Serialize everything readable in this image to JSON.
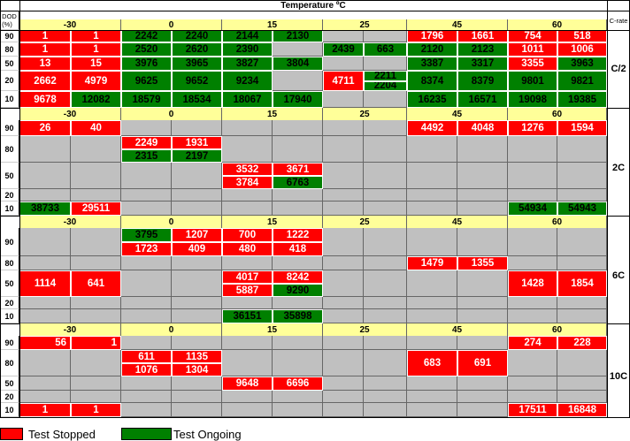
{
  "header": {
    "title": "Temperature ºC",
    "dod_label": "DOD\n(%)",
    "crate_label": "C-rate"
  },
  "temperatures": [
    "-30",
    "0",
    "15",
    "25",
    "45",
    "60"
  ],
  "colors": {
    "stopped": "#ff0000",
    "ongoing": "#008000",
    "empty": "#c0c0c0",
    "header": "#ffff99"
  },
  "blocks": [
    {
      "crate": "C/2",
      "dod": [
        "90",
        "80",
        "50",
        "20",
        "10"
      ],
      "cells": [
        [
          "red",
          "1",
          0,
          0,
          1
        ],
        [
          "red",
          "1",
          1,
          0,
          1
        ],
        [
          "green",
          "2242",
          2,
          0,
          1
        ],
        [
          "green",
          "2240",
          3,
          0,
          1
        ],
        [
          "green",
          "2144",
          4,
          0,
          1
        ],
        [
          "green",
          "2130",
          5,
          0,
          1
        ],
        [
          "red",
          "1796",
          8,
          0,
          1
        ],
        [
          "red",
          "1661",
          9,
          0,
          1
        ],
        [
          "red",
          "754",
          10,
          0,
          1
        ],
        [
          "red",
          "518",
          11,
          0,
          1
        ],
        [
          "red",
          "1",
          0,
          1,
          1
        ],
        [
          "red",
          "1",
          1,
          1,
          1
        ],
        [
          "green",
          "2520",
          2,
          1,
          1
        ],
        [
          "green",
          "2620",
          3,
          1,
          1
        ],
        [
          "green",
          "2390",
          4,
          1,
          1
        ],
        [
          "green",
          "2439",
          6,
          1,
          1
        ],
        [
          "green",
          "663",
          7,
          1,
          1
        ],
        [
          "green",
          "2120",
          8,
          1,
          1
        ],
        [
          "green",
          "2123",
          9,
          1,
          1
        ],
        [
          "red",
          "1011",
          10,
          1,
          1
        ],
        [
          "red",
          "1006",
          11,
          1,
          1
        ],
        [
          "red",
          "13",
          0,
          2,
          1
        ],
        [
          "red",
          "15",
          1,
          2,
          1
        ],
        [
          "green",
          "3976",
          2,
          2,
          1
        ],
        [
          "green",
          "3965",
          3,
          2,
          1
        ],
        [
          "green",
          "3827",
          4,
          2,
          1
        ],
        [
          "green",
          "3804",
          5,
          2,
          1
        ],
        [
          "green",
          "3387",
          8,
          2,
          1
        ],
        [
          "green",
          "3317",
          9,
          2,
          1
        ],
        [
          "red",
          "3355",
          10,
          2,
          1
        ],
        [
          "green",
          "3963",
          11,
          2,
          1
        ],
        [
          "red",
          "2662",
          0,
          3,
          1
        ],
        [
          "red",
          "4979",
          1,
          3,
          1
        ],
        [
          "green",
          "9625",
          2,
          3,
          1
        ],
        [
          "green",
          "9652",
          3,
          3,
          1
        ],
        [
          "green",
          "9234",
          4,
          3,
          1
        ],
        [
          "red",
          "4711",
          6,
          3,
          1
        ],
        [
          "green",
          "2211",
          7,
          3,
          0.5
        ],
        [
          "green",
          "2204",
          7,
          3.5,
          0.5
        ],
        [
          "green",
          "8374",
          8,
          3,
          1
        ],
        [
          "green",
          "8379",
          9,
          3,
          1
        ],
        [
          "green",
          "9801",
          10,
          3,
          1
        ],
        [
          "green",
          "9821",
          11,
          3,
          1
        ],
        [
          "red",
          "9678",
          0,
          4,
          1
        ],
        [
          "green",
          "12082",
          1,
          4,
          1
        ],
        [
          "green",
          "18579",
          2,
          4,
          1
        ],
        [
          "green",
          "18534",
          3,
          4,
          1
        ],
        [
          "green",
          "18067",
          4,
          4,
          1
        ],
        [
          "green",
          "17940",
          5,
          4,
          1
        ],
        [
          "green",
          "16235",
          8,
          4,
          1
        ],
        [
          "green",
          "16571",
          9,
          4,
          1
        ],
        [
          "green",
          "19098",
          10,
          4,
          1
        ],
        [
          "green",
          "19385",
          11,
          4,
          1
        ]
      ]
    },
    {
      "crate": "2C",
      "dod": [
        "90",
        "80",
        "50",
        "20",
        "10"
      ],
      "cells": [
        [
          "red",
          "26",
          0,
          0,
          1
        ],
        [
          "red",
          "40",
          1,
          0,
          1
        ],
        [
          "red",
          "4492",
          8,
          0,
          1
        ],
        [
          "red",
          "4048",
          9,
          0,
          1
        ],
        [
          "red",
          "1276",
          10,
          0,
          1
        ],
        [
          "red",
          "1594",
          11,
          0,
          1
        ],
        [
          "red",
          "2249",
          2,
          1,
          0.5
        ],
        [
          "red",
          "1931",
          3,
          1,
          0.5
        ],
        [
          "green",
          "2315",
          2,
          1.5,
          0.5
        ],
        [
          "green",
          "2197",
          3,
          1.5,
          0.5
        ],
        [
          "red",
          "3532",
          4,
          2,
          0.5
        ],
        [
          "red",
          "3671",
          5,
          2,
          0.5
        ],
        [
          "red",
          "3784",
          4,
          2.5,
          0.5
        ],
        [
          "green",
          "6763",
          5,
          2.5,
          0.5
        ],
        [
          "green",
          "38733",
          0,
          4,
          1
        ],
        [
          "red",
          "29511",
          1,
          4,
          1
        ],
        [
          "green",
          "54934",
          10,
          4,
          1
        ],
        [
          "green",
          "54943",
          11,
          4,
          1
        ]
      ]
    },
    {
      "crate": "6C",
      "dod": [
        "90",
        "80",
        "50",
        "20",
        "10"
      ],
      "cells": [
        [
          "green",
          "3795",
          2,
          0,
          0.5
        ],
        [
          "red",
          "1207",
          3,
          0,
          0.5
        ],
        [
          "red",
          "700",
          4,
          0,
          0.5
        ],
        [
          "red",
          "1222",
          5,
          0,
          0.5
        ],
        [
          "red",
          "1723",
          2,
          0.5,
          0.5
        ],
        [
          "red",
          "409",
          3,
          0.5,
          0.5
        ],
        [
          "red",
          "480",
          4,
          0.5,
          0.5
        ],
        [
          "red",
          "418",
          5,
          0.5,
          0.5
        ],
        [
          "red",
          "1479",
          8,
          1,
          1
        ],
        [
          "red",
          "1355",
          9,
          1,
          1
        ],
        [
          "red",
          "1114",
          0,
          2,
          1
        ],
        [
          "red",
          "641",
          1,
          2,
          1
        ],
        [
          "red",
          "4017",
          4,
          2,
          0.5
        ],
        [
          "red",
          "8242",
          5,
          2,
          0.5
        ],
        [
          "red",
          "5887",
          4,
          2.5,
          0.5
        ],
        [
          "green",
          "9290",
          5,
          2.5,
          0.5
        ],
        [
          "red",
          "1428",
          10,
          2,
          1
        ],
        [
          "red",
          "1854",
          11,
          2,
          1
        ],
        [
          "green",
          "36151",
          4,
          4,
          1
        ],
        [
          "green",
          "35898",
          5,
          4,
          1
        ]
      ]
    },
    {
      "crate": "10C",
      "dod": [
        "90",
        "80",
        "50",
        "20",
        "10"
      ],
      "cells": [
        [
          "red",
          "56",
          0,
          0,
          1,
          "r"
        ],
        [
          "red",
          "1",
          1,
          0,
          1,
          "r"
        ],
        [
          "red",
          "274",
          10,
          0,
          1
        ],
        [
          "red",
          "228",
          11,
          0,
          1
        ],
        [
          "red",
          "611",
          2,
          1,
          0.5
        ],
        [
          "red",
          "1135",
          3,
          1,
          0.5
        ],
        [
          "red",
          "1076",
          2,
          1.5,
          0.5
        ],
        [
          "red",
          "1304",
          3,
          1.5,
          0.5
        ],
        [
          "red",
          "683",
          8,
          1,
          1
        ],
        [
          "red",
          "691",
          9,
          1,
          1
        ],
        [
          "red",
          "9648",
          4,
          2,
          1
        ],
        [
          "red",
          "6696",
          5,
          2,
          1
        ],
        [
          "red",
          "1",
          0,
          4,
          1
        ],
        [
          "red",
          "1",
          1,
          4,
          1
        ],
        [
          "red",
          "17511",
          10,
          4,
          1
        ],
        [
          "red",
          "16848",
          11,
          4,
          1
        ]
      ]
    }
  ],
  "legend": {
    "stopped_label": "Test Stopped",
    "ongoing_label": "Test Ongoing"
  }
}
